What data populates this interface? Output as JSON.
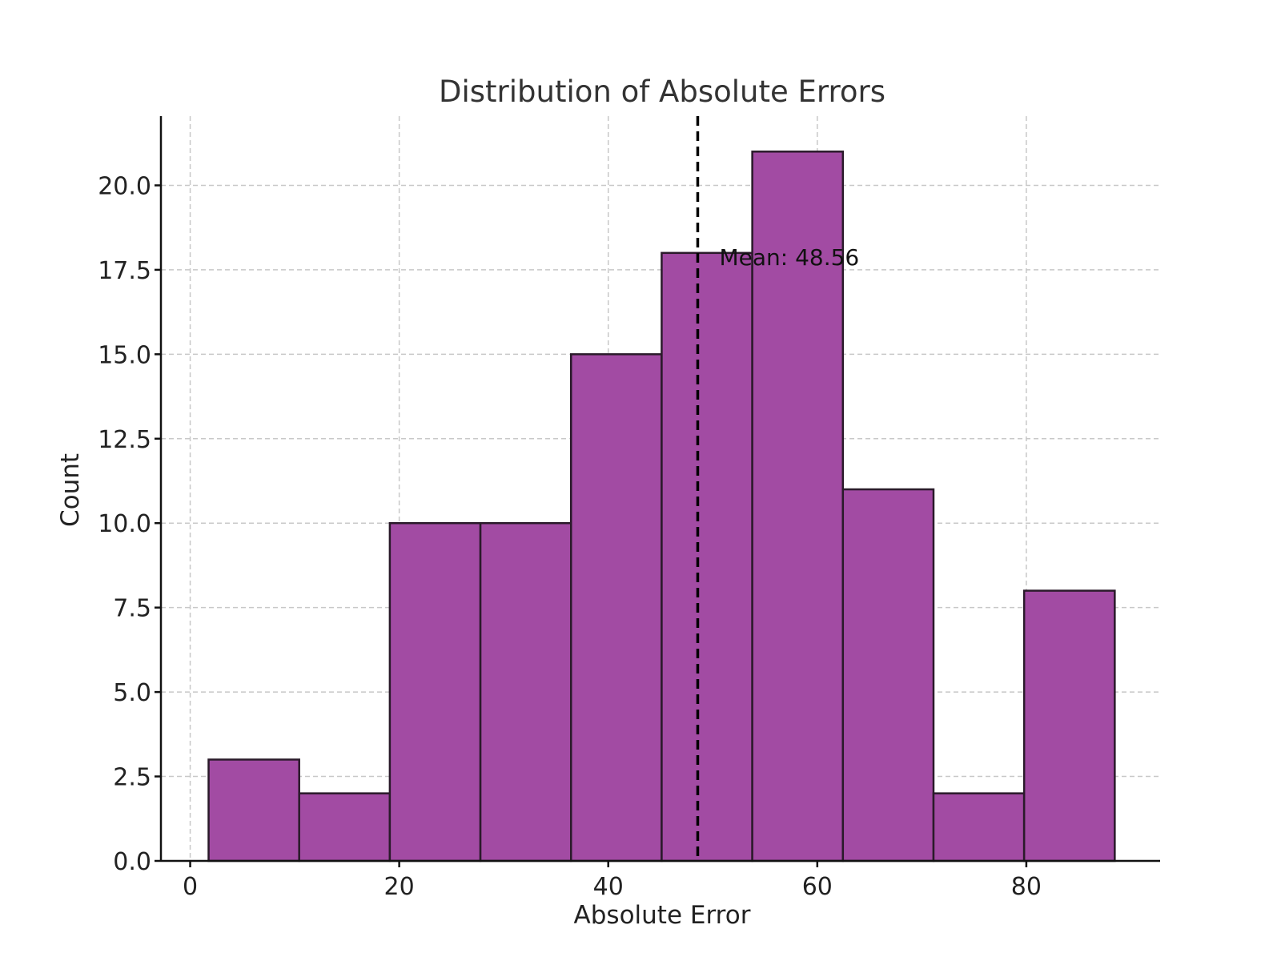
{
  "chart_data": {
    "type": "bar",
    "title": "Distribution of Absolute Errors",
    "xlabel": "Absolute Error",
    "ylabel": "Count",
    "bin_edges": [
      1.76,
      10.43,
      19.1,
      27.77,
      36.44,
      45.11,
      53.78,
      62.45,
      71.12,
      79.79,
      88.46
    ],
    "values": [
      3,
      2,
      10,
      10,
      15,
      18,
      21,
      11,
      2,
      8
    ],
    "xlim": [
      -2.8,
      92.8
    ],
    "ylim": [
      0,
      22.05
    ],
    "xticks": [
      0,
      20,
      40,
      60,
      80
    ],
    "xtick_labels": [
      "0",
      "20",
      "40",
      "60",
      "80"
    ],
    "yticks": [
      0,
      2.5,
      5,
      7.5,
      10,
      12.5,
      15,
      17.5,
      20
    ],
    "ytick_labels": [
      "0.0",
      "2.5",
      "5.0",
      "7.5",
      "10.0",
      "12.5",
      "15.0",
      "17.5",
      "20.0"
    ],
    "grid": true,
    "mean": {
      "value": 48.56,
      "label": "Mean: 48.56"
    },
    "colors": {
      "bar": "#a24ba3",
      "edge": "#2a1a2a",
      "mean_line": "#000000"
    }
  }
}
